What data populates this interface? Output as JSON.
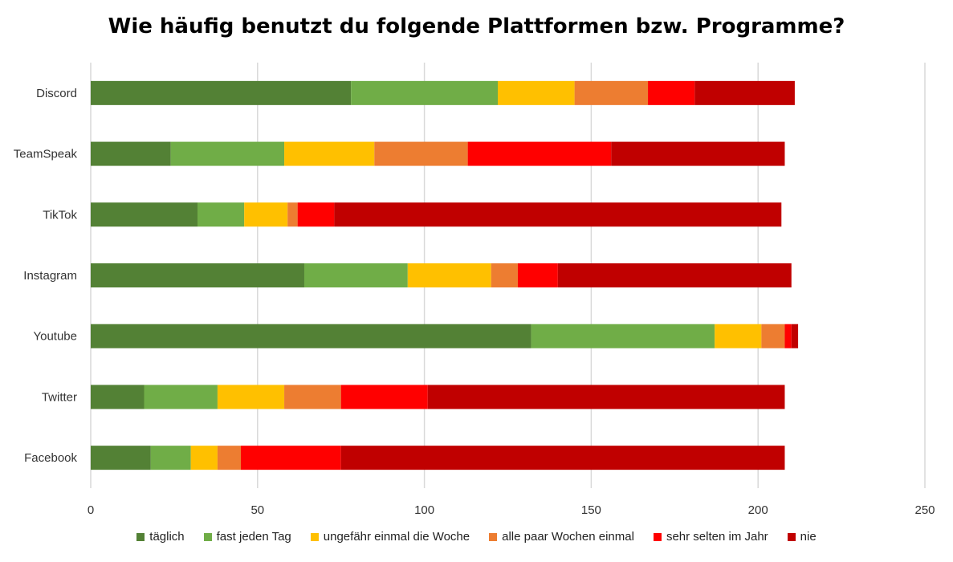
{
  "chart_data": {
    "type": "bar",
    "orientation": "horizontal",
    "stacked": true,
    "title": "Wie häufig benutzt du folgende Plattformen bzw. Programme?",
    "xlabel": "",
    "ylabel": "",
    "xlim": [
      0,
      250
    ],
    "xticks": [
      0,
      50,
      100,
      150,
      200,
      250
    ],
    "grid": true,
    "legend_position": "bottom",
    "categories": [
      "Discord",
      "TeamSpeak",
      "TikTok",
      "Instagram",
      "Youtube",
      "Twitter",
      "Facebook"
    ],
    "series": [
      {
        "name": "täglich",
        "color": "#538135",
        "values": [
          78,
          24,
          32,
          64,
          132,
          16,
          18
        ]
      },
      {
        "name": "fast jeden Tag",
        "color": "#70AD47",
        "values": [
          44,
          34,
          14,
          31,
          55,
          22,
          12
        ]
      },
      {
        "name": "ungefähr einmal die Woche",
        "color": "#FFC000",
        "values": [
          23,
          27,
          13,
          25,
          14,
          20,
          8
        ]
      },
      {
        "name": "alle paar Wochen einmal",
        "color": "#ED7D31",
        "values": [
          22,
          28,
          3,
          8,
          7,
          17,
          7
        ]
      },
      {
        "name": "sehr selten im Jahr",
        "color": "#FF0000",
        "values": [
          14,
          43,
          11,
          12,
          2,
          26,
          30
        ]
      },
      {
        "name": "nie",
        "color": "#C00000",
        "values": [
          30,
          52,
          134,
          70,
          2,
          107,
          133
        ]
      }
    ]
  }
}
